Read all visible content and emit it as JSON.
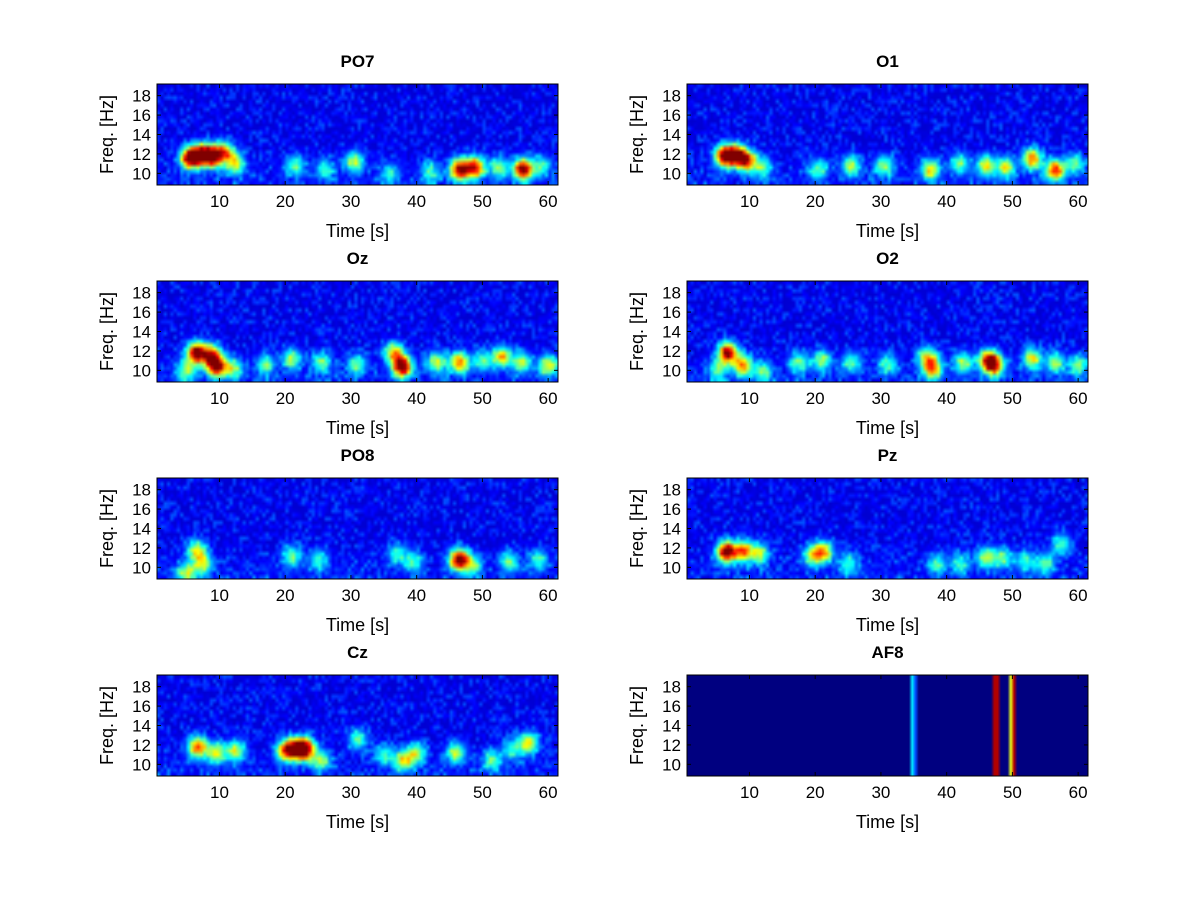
{
  "figure": {
    "background": "#ffffff"
  },
  "colormap": "jet",
  "chart_data": [
    {
      "type": "heatmap",
      "title": "PO7",
      "xlabel": "Time [s]",
      "ylabel": "Freq. [Hz]",
      "xlim": [
        0.5,
        61.5
      ],
      "ylim": [
        8.8,
        19.2
      ],
      "xticks": [
        10,
        20,
        30,
        40,
        50,
        60
      ],
      "yticks": [
        10,
        12,
        14,
        16,
        18
      ],
      "hotspots": [
        [
          5.5,
          11.6,
          0.95
        ],
        [
          7.3,
          11.9,
          0.88
        ],
        [
          9.0,
          11.8,
          0.9
        ],
        [
          10.8,
          12.2,
          0.55
        ],
        [
          12.4,
          11.0,
          0.5
        ],
        [
          21.5,
          10.8,
          0.35
        ],
        [
          26.0,
          10.4,
          0.3
        ],
        [
          30.5,
          11.2,
          0.45
        ],
        [
          36.0,
          10.0,
          0.25
        ],
        [
          42.0,
          10.2,
          0.3
        ],
        [
          46.5,
          10.4,
          0.85
        ],
        [
          48.8,
          10.6,
          0.8
        ],
        [
          52.5,
          10.6,
          0.4
        ],
        [
          56.2,
          10.4,
          0.95
        ],
        [
          59.0,
          10.8,
          0.3
        ]
      ]
    },
    {
      "type": "heatmap",
      "title": "O1",
      "xlabel": "Time [s]",
      "ylabel": "Freq. [Hz]",
      "xlim": [
        0.5,
        61.5
      ],
      "ylim": [
        8.8,
        19.2
      ],
      "xticks": [
        10,
        20,
        30,
        40,
        50,
        60
      ],
      "yticks": [
        10,
        12,
        14,
        16,
        18
      ],
      "hotspots": [
        [
          6.2,
          11.8,
          0.9
        ],
        [
          8.0,
          11.9,
          0.85
        ],
        [
          9.6,
          11.3,
          0.7
        ],
        [
          12.0,
          10.6,
          0.35
        ],
        [
          20.5,
          10.4,
          0.35
        ],
        [
          25.5,
          10.8,
          0.4
        ],
        [
          30.5,
          10.8,
          0.4
        ],
        [
          37.5,
          10.4,
          0.5
        ],
        [
          42.0,
          11.0,
          0.35
        ],
        [
          46.0,
          10.8,
          0.5
        ],
        [
          49.0,
          10.6,
          0.45
        ],
        [
          53.0,
          11.5,
          0.65
        ],
        [
          56.5,
          10.3,
          0.75
        ],
        [
          59.5,
          11.0,
          0.35
        ]
      ]
    },
    {
      "type": "heatmap",
      "title": "Oz",
      "xlabel": "Time [s]",
      "ylabel": "Freq. [Hz]",
      "xlim": [
        0.5,
        61.5
      ],
      "ylim": [
        8.8,
        19.2
      ],
      "xticks": [
        10,
        20,
        30,
        40,
        50,
        60
      ],
      "yticks": [
        10,
        12,
        14,
        16,
        18
      ],
      "hotspots": [
        [
          5.0,
          10.0,
          0.4
        ],
        [
          6.5,
          11.8,
          0.95
        ],
        [
          8.8,
          11.6,
          0.7
        ],
        [
          9.5,
          10.4,
          0.85
        ],
        [
          12.0,
          10.2,
          0.4
        ],
        [
          17.0,
          10.6,
          0.35
        ],
        [
          21.0,
          11.2,
          0.4
        ],
        [
          25.5,
          10.8,
          0.35
        ],
        [
          31.0,
          10.6,
          0.35
        ],
        [
          36.5,
          11.8,
          0.55
        ],
        [
          37.8,
          10.4,
          0.95
        ],
        [
          43.0,
          10.8,
          0.45
        ],
        [
          46.5,
          10.8,
          0.65
        ],
        [
          50.0,
          11.0,
          0.35
        ],
        [
          53.0,
          11.4,
          0.55
        ],
        [
          56.0,
          10.8,
          0.45
        ],
        [
          60.0,
          10.5,
          0.5
        ]
      ]
    },
    {
      "type": "heatmap",
      "title": "O2",
      "xlabel": "Time [s]",
      "ylabel": "Freq. [Hz]",
      "xlim": [
        0.5,
        61.5
      ],
      "ylim": [
        8.8,
        19.2
      ],
      "xticks": [
        10,
        20,
        30,
        40,
        50,
        60
      ],
      "yticks": [
        10,
        12,
        14,
        16,
        18
      ],
      "hotspots": [
        [
          5.2,
          10.0,
          0.35
        ],
        [
          6.7,
          11.8,
          0.9
        ],
        [
          9.0,
          10.5,
          0.6
        ],
        [
          12.0,
          9.8,
          0.35
        ],
        [
          17.5,
          10.8,
          0.35
        ],
        [
          21.0,
          11.0,
          0.4
        ],
        [
          25.5,
          10.8,
          0.35
        ],
        [
          31.0,
          10.6,
          0.3
        ],
        [
          37.0,
          11.4,
          0.45
        ],
        [
          37.8,
          10.2,
          0.65
        ],
        [
          42.5,
          10.8,
          0.4
        ],
        [
          46.4,
          11.0,
          0.85
        ],
        [
          47.5,
          10.4,
          0.5
        ],
        [
          53.0,
          11.2,
          0.5
        ],
        [
          56.5,
          10.8,
          0.4
        ],
        [
          60.0,
          10.5,
          0.35
        ]
      ]
    },
    {
      "type": "heatmap",
      "title": "PO8",
      "xlabel": "Time [s]",
      "ylabel": "Freq. [Hz]",
      "xlim": [
        0.5,
        61.5
      ],
      "ylim": [
        8.8,
        19.2
      ],
      "xticks": [
        10,
        20,
        30,
        40,
        50,
        60
      ],
      "yticks": [
        10,
        12,
        14,
        16,
        18
      ],
      "hotspots": [
        [
          5.0,
          9.4,
          0.45
        ],
        [
          6.5,
          11.8,
          0.45
        ],
        [
          7.5,
          10.4,
          0.45
        ],
        [
          21.0,
          11.2,
          0.35
        ],
        [
          25.0,
          10.8,
          0.3
        ],
        [
          37.0,
          11.4,
          0.3
        ],
        [
          39.5,
          10.6,
          0.3
        ],
        [
          46.5,
          10.8,
          0.95
        ],
        [
          48.5,
          10.2,
          0.35
        ],
        [
          54.0,
          10.6,
          0.35
        ],
        [
          58.5,
          10.8,
          0.3
        ]
      ]
    },
    {
      "type": "heatmap",
      "title": "Pz",
      "xlabel": "Time [s]",
      "ylabel": "Freq. [Hz]",
      "xlim": [
        0.5,
        61.5
      ],
      "ylim": [
        8.8,
        19.2
      ],
      "xticks": [
        10,
        20,
        30,
        40,
        50,
        60
      ],
      "yticks": [
        10,
        12,
        14,
        16,
        18
      ],
      "hotspots": [
        [
          6.5,
          11.6,
          0.95
        ],
        [
          9.0,
          11.7,
          0.65
        ],
        [
          11.5,
          11.4,
          0.45
        ],
        [
          19.5,
          11.2,
          0.4
        ],
        [
          21.2,
          11.6,
          0.6
        ],
        [
          25.0,
          10.4,
          0.3
        ],
        [
          38.5,
          10.4,
          0.3
        ],
        [
          42.0,
          10.4,
          0.3
        ],
        [
          46.0,
          11.0,
          0.45
        ],
        [
          48.5,
          11.0,
          0.35
        ],
        [
          52.0,
          10.6,
          0.3
        ],
        [
          55.0,
          10.4,
          0.35
        ],
        [
          57.5,
          12.4,
          0.35
        ]
      ]
    },
    {
      "type": "heatmap",
      "title": "Cz",
      "xlabel": "Time [s]",
      "ylabel": "Freq. [Hz]",
      "xlim": [
        0.5,
        61.5
      ],
      "ylim": [
        8.8,
        19.2
      ],
      "xticks": [
        10,
        20,
        30,
        40,
        50,
        60
      ],
      "yticks": [
        10,
        12,
        14,
        16,
        18
      ],
      "hotspots": [
        [
          6.7,
          11.8,
          0.7
        ],
        [
          9.5,
          11.2,
          0.5
        ],
        [
          12.5,
          11.4,
          0.45
        ],
        [
          20.0,
          11.4,
          0.6
        ],
        [
          21.5,
          11.6,
          0.75
        ],
        [
          23.0,
          11.6,
          0.95
        ],
        [
          25.5,
          10.4,
          0.4
        ],
        [
          31.0,
          12.6,
          0.35
        ],
        [
          35.0,
          11.0,
          0.3
        ],
        [
          38.0,
          10.4,
          0.5
        ],
        [
          40.0,
          11.2,
          0.4
        ],
        [
          46.0,
          11.2,
          0.45
        ],
        [
          51.5,
          10.4,
          0.35
        ],
        [
          54.5,
          11.6,
          0.3
        ],
        [
          57.0,
          12.2,
          0.55
        ]
      ]
    },
    {
      "type": "heatmap",
      "title": "AF8",
      "xlabel": "Time [s]",
      "ylabel": "Freq. [Hz]",
      "xlim": [
        0.5,
        61.5
      ],
      "ylim": [
        8.8,
        19.2
      ],
      "xticks": [
        10,
        20,
        30,
        40,
        50,
        60
      ],
      "yticks": [
        10,
        12,
        14,
        16,
        18
      ],
      "background_level": 0.0,
      "bands": [
        [
          34.3,
          35.1,
          0.35
        ],
        [
          35.1,
          35.4,
          0.2
        ],
        [
          46.8,
          47.0,
          0.65
        ],
        [
          47.0,
          47.3,
          0.95
        ],
        [
          47.3,
          47.6,
          0.6
        ],
        [
          47.6,
          47.9,
          0.95
        ],
        [
          47.9,
          48.2,
          0.7
        ],
        [
          49.0,
          49.2,
          0.45
        ],
        [
          49.4,
          49.7,
          0.95
        ],
        [
          49.7,
          50.0,
          0.6
        ],
        [
          50.0,
          50.3,
          0.95
        ],
        [
          50.3,
          50.5,
          0.55
        ]
      ]
    }
  ]
}
